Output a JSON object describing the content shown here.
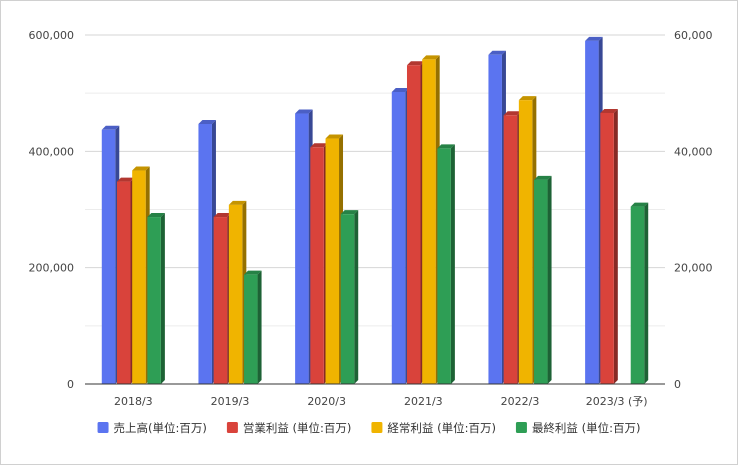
{
  "chart_data": {
    "type": "bar",
    "title": "",
    "xlabel": "",
    "ylabel": "",
    "categories": [
      "2018/3",
      "2019/3",
      "2020/3",
      "2021/3",
      "2022/3",
      "2023/3 (予)"
    ],
    "left_axis": {
      "range": [
        0,
        600000
      ],
      "ticks": [
        "0",
        "200,000",
        "400,000",
        "600,000"
      ]
    },
    "right_axis": {
      "range": [
        0,
        60000
      ],
      "ticks": [
        "0",
        "20,000",
        "40,000",
        "60,000"
      ]
    },
    "grid": true,
    "legend_position": "bottom",
    "series": [
      {
        "name": "売上高(単位:百万)",
        "axis": "left",
        "color": "#5b74f0",
        "values": [
          437000,
          447000,
          465000,
          502000,
          566000,
          590000
        ]
      },
      {
        "name": "営業利益 (単位:百万)",
        "axis": "right",
        "color": "#d9433b",
        "values": [
          34800,
          28700,
          40700,
          54800,
          46200,
          46600
        ]
      },
      {
        "name": "経常利益 (単位:百万)",
        "axis": "right",
        "color": "#f0b400",
        "values": [
          36700,
          30800,
          42200,
          55800,
          48800,
          null
        ]
      },
      {
        "name": "最終利益 (単位:百万)",
        "axis": "right",
        "color": "#2e9e55",
        "values": [
          28700,
          18800,
          29200,
          40500,
          35100,
          30500
        ]
      }
    ]
  }
}
